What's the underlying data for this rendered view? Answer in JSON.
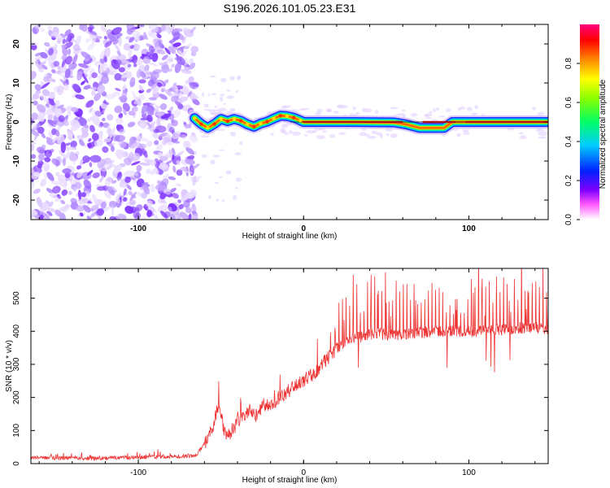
{
  "figure": {
    "title": "S196.2026.101.05.23.E31"
  },
  "chart_data": [
    {
      "type": "heatmap",
      "title": "S196.2026.101.05.23.E31",
      "xlabel": "Height of straight line (km)",
      "ylabel": "Frequency (Hz)",
      "xlim": [
        -165,
        148
      ],
      "ylim": [
        -25,
        25
      ],
      "x_ticks": [
        -100,
        0,
        100
      ],
      "y_ticks": [
        -20,
        -10,
        0,
        10,
        20
      ],
      "colorbar": {
        "label": "Normalized spectral amplitude",
        "range": [
          0,
          1
        ],
        "ticks": [
          0.0,
          0.2,
          0.4,
          0.6,
          0.8
        ],
        "tick_labels": [
          "0.0",
          "0.2",
          "0.4",
          "0.6",
          "0.8"
        ]
      },
      "noise_region_x": [
        -165,
        -67
      ],
      "ridge_points": [
        {
          "x": -66,
          "y": 1.0
        },
        {
          "x": -62,
          "y": -0.5
        },
        {
          "x": -58,
          "y": -1.5
        },
        {
          "x": -54,
          "y": -0.5
        },
        {
          "x": -50,
          "y": 0.8
        },
        {
          "x": -46,
          "y": 0.2
        },
        {
          "x": -42,
          "y": 0.8
        },
        {
          "x": -38,
          "y": 0.3
        },
        {
          "x": -34,
          "y": -0.6
        },
        {
          "x": -30,
          "y": -1.2
        },
        {
          "x": -26,
          "y": -0.4
        },
        {
          "x": -22,
          "y": 0.1
        },
        {
          "x": -18,
          "y": 0.9
        },
        {
          "x": -14,
          "y": 1.6
        },
        {
          "x": -10,
          "y": 1.5
        },
        {
          "x": -6,
          "y": 1.1
        },
        {
          "x": -2,
          "y": 0.4
        },
        {
          "x": 0,
          "y": 0.0
        },
        {
          "x": 30,
          "y": 0.0
        },
        {
          "x": 55,
          "y": -0.1
        },
        {
          "x": 62,
          "y": -0.6
        },
        {
          "x": 70,
          "y": -1.5
        },
        {
          "x": 85,
          "y": -1.5
        },
        {
          "x": 90,
          "y": 0.0
        },
        {
          "x": 148,
          "y": 0.0
        }
      ]
    },
    {
      "type": "line",
      "xlabel": "Height of straight line (km)",
      "ylabel": "SNR (10 * v/v)",
      "xlim": [
        -165,
        148
      ],
      "ylim": [
        0,
        590
      ],
      "x_ticks": [
        -100,
        0,
        100
      ],
      "y_ticks": [
        0,
        100,
        200,
        300,
        400,
        500
      ],
      "series": [
        {
          "name": "SNR",
          "color": "#ee3333",
          "x": [
            -165,
            -150,
            -130,
            -110,
            -90,
            -75,
            -65,
            -60,
            -55,
            -52,
            -50,
            -47,
            -44,
            -40,
            -36,
            -32,
            -28,
            -24,
            -20,
            -16,
            -12,
            -8,
            -4,
            0,
            4,
            8,
            12,
            16,
            20,
            24,
            28,
            32,
            36,
            40,
            50,
            60,
            70,
            80,
            90,
            100,
            110,
            120,
            130,
            140,
            148
          ],
          "values": [
            18,
            17,
            16,
            18,
            20,
            22,
            25,
            60,
            110,
            170,
            150,
            75,
            95,
            125,
            145,
            165,
            140,
            180,
            175,
            195,
            205,
            225,
            235,
            250,
            265,
            280,
            305,
            325,
            350,
            365,
            375,
            380,
            385,
            390,
            392,
            390,
            395,
            400,
            398,
            400,
            402,
            405,
            410,
            412,
            408
          ]
        }
      ]
    }
  ]
}
